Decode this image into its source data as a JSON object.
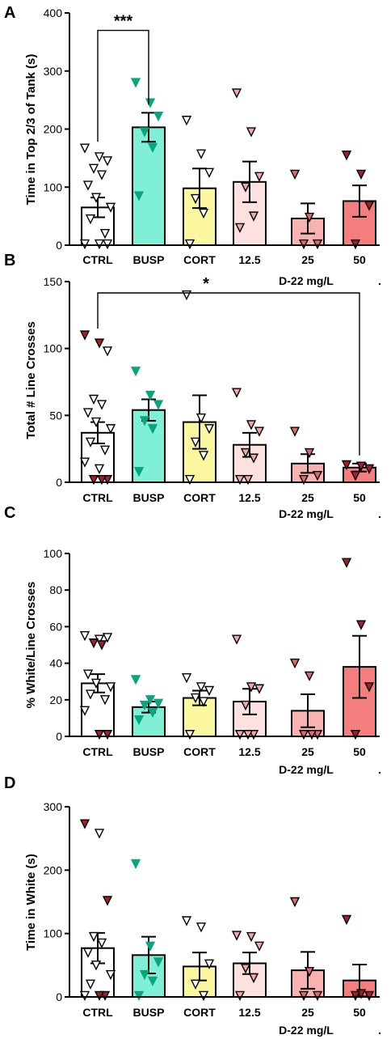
{
  "colors": {
    "CTRL": "#ffffff",
    "BUSP": "#7ff0d6",
    "CORT": "#fbf7a0",
    "12.5": "#fde0e0",
    "25": "#f9b2b2",
    "50": "#f47e7e",
    "marker_teal": "#0aa57f",
    "marker_darkred": "#a3202a",
    "marker_mid": "#e06a6a",
    "marker_light": "#f5a5a5",
    "axis": "#000000"
  },
  "chart_data": [
    {
      "panel": "A",
      "type": "bar",
      "ylabel": "Time in Top 2/3 of Tank (s)",
      "xlabel": "D-22 mg/L",
      "dot": ".",
      "categories": [
        "CTRL",
        "BUSP",
        "CORT",
        "12.5",
        "25",
        "50"
      ],
      "ylim": [
        0,
        400
      ],
      "yticks": [
        0,
        100,
        200,
        300,
        400
      ],
      "values": [
        65,
        203,
        98,
        109,
        46,
        76
      ],
      "sem": [
        17,
        25,
        34,
        35,
        26,
        27
      ],
      "points": [
        [
          {
            "y": 167,
            "c": "w"
          },
          {
            "y": 152,
            "c": "w"
          },
          {
            "y": 145,
            "c": "w"
          },
          {
            "y": 132,
            "c": "w"
          },
          {
            "y": 121,
            "c": "w"
          },
          {
            "y": 103,
            "c": "w"
          },
          {
            "y": 82,
            "c": "w"
          },
          {
            "y": 65,
            "c": "w"
          },
          {
            "y": 45,
            "c": "w"
          },
          {
            "y": 20,
            "c": "w"
          },
          {
            "y": 2,
            "c": "w"
          },
          {
            "y": 2,
            "c": "w"
          },
          {
            "y": 2,
            "c": "w"
          }
        ],
        [
          {
            "y": 280,
            "c": "t"
          },
          {
            "y": 245,
            "c": "t"
          },
          {
            "y": 222,
            "c": "t"
          },
          {
            "y": 195,
            "c": "t"
          },
          {
            "y": 168,
            "c": "t"
          },
          {
            "y": 85,
            "c": "t"
          }
        ],
        [
          {
            "y": 215,
            "c": "w"
          },
          {
            "y": 157,
            "c": "w"
          },
          {
            "y": 125,
            "c": "w"
          },
          {
            "y": 80,
            "c": "w"
          },
          {
            "y": 55,
            "c": "w"
          },
          {
            "y": 2,
            "c": "w"
          }
        ],
        [
          {
            "y": 262,
            "c": "l"
          },
          {
            "y": 195,
            "c": "l"
          },
          {
            "y": 118,
            "c": "l"
          },
          {
            "y": 100,
            "c": "l"
          },
          {
            "y": 50,
            "c": "l"
          },
          {
            "y": 30,
            "c": "l"
          }
        ],
        [
          {
            "y": 122,
            "c": "m"
          },
          {
            "y": 48,
            "c": "m"
          },
          {
            "y": 2,
            "c": "m"
          },
          {
            "y": 2,
            "c": "m"
          }
        ],
        [
          {
            "y": 155,
            "c": "d"
          },
          {
            "y": 122,
            "c": "d"
          },
          {
            "y": 68,
            "c": "d"
          },
          {
            "y": 2,
            "c": "d"
          }
        ]
      ],
      "sig": {
        "from": 0,
        "to": 1,
        "y": 370,
        "label": "***"
      }
    },
    {
      "panel": "B",
      "type": "bar",
      "ylabel": "Total # Line Crosses",
      "xlabel": "D-22 mg/L",
      "dot": ".",
      "categories": [
        "CTRL",
        "BUSP",
        "CORT",
        "12.5",
        "25",
        "50"
      ],
      "ylim": [
        0,
        150
      ],
      "yticks": [
        0,
        50,
        100,
        150
      ],
      "values": [
        37,
        54,
        45,
        28,
        14,
        11
      ],
      "sem": [
        8,
        8,
        20,
        9,
        7,
        3
      ],
      "points": [
        [
          {
            "y": 110,
            "c": "d"
          },
          {
            "y": 104,
            "c": "d"
          },
          {
            "y": 98,
            "c": "w"
          },
          {
            "y": 62,
            "c": "w"
          },
          {
            "y": 58,
            "c": "w"
          },
          {
            "y": 52,
            "c": "w"
          },
          {
            "y": 45,
            "c": "w"
          },
          {
            "y": 40,
            "c": "w"
          },
          {
            "y": 30,
            "c": "w"
          },
          {
            "y": 24,
            "c": "w"
          },
          {
            "y": 15,
            "c": "w"
          },
          {
            "y": 10,
            "c": "w"
          },
          {
            "y": 2,
            "c": "d"
          },
          {
            "y": 2,
            "c": "d"
          },
          {
            "y": 2,
            "c": "d"
          }
        ],
        [
          {
            "y": 83,
            "c": "t"
          },
          {
            "y": 65,
            "c": "t"
          },
          {
            "y": 58,
            "c": "t"
          },
          {
            "y": 46,
            "c": "t"
          },
          {
            "y": 40,
            "c": "t"
          },
          {
            "y": 8,
            "c": "t"
          }
        ],
        [
          {
            "y": 140,
            "c": "w"
          },
          {
            "y": 48,
            "c": "w"
          },
          {
            "y": 40,
            "c": "w"
          },
          {
            "y": 30,
            "c": "w"
          },
          {
            "y": 20,
            "c": "w"
          },
          {
            "y": 2,
            "c": "w"
          }
        ],
        [
          {
            "y": 67,
            "c": "l"
          },
          {
            "y": 43,
            "c": "l"
          },
          {
            "y": 38,
            "c": "l"
          },
          {
            "y": 22,
            "c": "l"
          },
          {
            "y": 18,
            "c": "l"
          },
          {
            "y": 2,
            "c": "l"
          },
          {
            "y": 2,
            "c": "l"
          }
        ],
        [
          {
            "y": 38,
            "c": "m"
          },
          {
            "y": 22,
            "c": "m"
          },
          {
            "y": 5,
            "c": "m"
          },
          {
            "y": 2,
            "c": "m"
          }
        ],
        [
          {
            "y": 13,
            "c": "d"
          },
          {
            "y": 12,
            "c": "d"
          },
          {
            "y": 10,
            "c": "d"
          },
          {
            "y": 5,
            "c": "d"
          }
        ]
      ],
      "sig": {
        "from": 0,
        "to": 5,
        "y": 150,
        "label": "*"
      }
    },
    {
      "panel": "C",
      "type": "bar",
      "ylabel": "% White/Line Crosses",
      "xlabel": "D-22 mg/L",
      "dot": ".",
      "categories": [
        "CTRL",
        "BUSP",
        "CORT",
        "12.5",
        "25",
        "50"
      ],
      "ylim": [
        0,
        100
      ],
      "yticks": [
        0,
        20,
        40,
        60,
        80,
        100
      ],
      "values": [
        29,
        16,
        21,
        19,
        14,
        38
      ],
      "sem": [
        5,
        3,
        4,
        7,
        9,
        17
      ],
      "points": [
        [
          {
            "y": 55,
            "c": "w"
          },
          {
            "y": 53,
            "c": "w"
          },
          {
            "y": 54,
            "c": "w"
          },
          {
            "y": 51,
            "c": "d"
          },
          {
            "y": 50,
            "c": "d"
          },
          {
            "y": 34,
            "c": "w"
          },
          {
            "y": 29,
            "c": "w"
          },
          {
            "y": 27,
            "c": "w"
          },
          {
            "y": 23,
            "c": "w"
          },
          {
            "y": 20,
            "c": "w"
          },
          {
            "y": 14,
            "c": "w"
          },
          {
            "y": 1,
            "c": "d"
          },
          {
            "y": 1,
            "c": "d"
          }
        ],
        [
          {
            "y": 31,
            "c": "t"
          },
          {
            "y": 20,
            "c": "t"
          },
          {
            "y": 18,
            "c": "t"
          },
          {
            "y": 17,
            "c": "t"
          },
          {
            "y": 13,
            "c": "t"
          },
          {
            "y": 9,
            "c": "t"
          }
        ],
        [
          {
            "y": 32,
            "c": "w"
          },
          {
            "y": 27,
            "c": "w"
          },
          {
            "y": 25,
            "c": "w"
          },
          {
            "y": 21,
            "c": "w"
          },
          {
            "y": 19,
            "c": "w"
          },
          {
            "y": 1,
            "c": "w"
          }
        ],
        [
          {
            "y": 53,
            "c": "l"
          },
          {
            "y": 27,
            "c": "l"
          },
          {
            "y": 26,
            "c": "l"
          },
          {
            "y": 17,
            "c": "l"
          },
          {
            "y": 1,
            "c": "l"
          },
          {
            "y": 1,
            "c": "l"
          },
          {
            "y": 1,
            "c": "l"
          }
        ],
        [
          {
            "y": 40,
            "c": "m"
          },
          {
            "y": 33,
            "c": "m"
          },
          {
            "y": 1,
            "c": "m"
          },
          {
            "y": 1,
            "c": "m"
          },
          {
            "y": 1,
            "c": "m"
          }
        ],
        [
          {
            "y": 95,
            "c": "d"
          },
          {
            "y": 61,
            "c": "d"
          },
          {
            "y": 27,
            "c": "d"
          },
          {
            "y": 1,
            "c": "d"
          }
        ]
      ]
    },
    {
      "panel": "D",
      "type": "bar",
      "ylabel": "Time in White (s)",
      "xlabel": "D-22 mg/L",
      "dot": ".",
      "categories": [
        "CTRL",
        "BUSP",
        "CORT",
        "12.5",
        "25",
        "50"
      ],
      "ylim": [
        0,
        300
      ],
      "yticks": [
        0,
        100,
        200,
        300
      ],
      "values": [
        77,
        66,
        48,
        53,
        42,
        26
      ],
      "sem": [
        24,
        29,
        22,
        17,
        29,
        25
      ],
      "points": [
        [
          {
            "y": 273,
            "c": "d"
          },
          {
            "y": 258,
            "c": "w"
          },
          {
            "y": 152,
            "c": "d"
          },
          {
            "y": 95,
            "c": "w"
          },
          {
            "y": 85,
            "c": "w"
          },
          {
            "y": 70,
            "c": "w"
          },
          {
            "y": 50,
            "c": "w"
          },
          {
            "y": 35,
            "c": "w"
          },
          {
            "y": 20,
            "c": "w"
          },
          {
            "y": 2,
            "c": "d"
          },
          {
            "y": 2,
            "c": "w"
          },
          {
            "y": 2,
            "c": "d"
          }
        ],
        [
          {
            "y": 210,
            "c": "t"
          },
          {
            "y": 80,
            "c": "t"
          },
          {
            "y": 55,
            "c": "t"
          },
          {
            "y": 35,
            "c": "t"
          },
          {
            "y": 25,
            "c": "t"
          },
          {
            "y": 2,
            "c": "t"
          }
        ],
        [
          {
            "y": 120,
            "c": "w"
          },
          {
            "y": 110,
            "c": "w"
          },
          {
            "y": 52,
            "c": "w"
          },
          {
            "y": 20,
            "c": "w"
          },
          {
            "y": 2,
            "c": "w"
          }
        ],
        [
          {
            "y": 97,
            "c": "l"
          },
          {
            "y": 95,
            "c": "l"
          },
          {
            "y": 80,
            "c": "l"
          },
          {
            "y": 45,
            "c": "l"
          },
          {
            "y": 30,
            "c": "l"
          },
          {
            "y": 2,
            "c": "l"
          }
        ],
        [
          {
            "y": 150,
            "c": "m"
          },
          {
            "y": 40,
            "c": "m"
          },
          {
            "y": 2,
            "c": "m"
          },
          {
            "y": 2,
            "c": "m"
          }
        ],
        [
          {
            "y": 122,
            "c": "d"
          },
          {
            "y": 5,
            "c": "d"
          },
          {
            "y": 2,
            "c": "d"
          },
          {
            "y": 2,
            "c": "d"
          }
        ]
      ]
    }
  ]
}
